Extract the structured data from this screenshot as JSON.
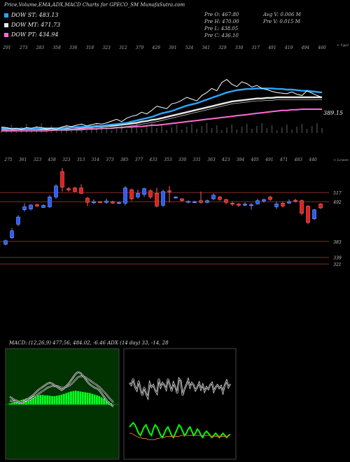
{
  "title": "Price,Volume,EMA,ADX,MACD Charts for GPECO_SM MunafaSutra.com",
  "legend": [
    {
      "label": "DOW ST: 483.13",
      "color": "#2aa7ff"
    },
    {
      "label": "DOW MT: 471.73",
      "color": "#e8e8e8"
    },
    {
      "label": "DOW PT: 434.94",
      "color": "#ff6ad5"
    }
  ],
  "ohlc": {
    "open": "Pre O: 467.80",
    "high": "Pre H: 470.00",
    "low": "Pre L: 438.05",
    "close": "Pre C: 436.10",
    "avgv": "Avg V: 0.006 M",
    "prev": "Pre V: 0.015 M"
  },
  "chart_data": [
    {
      "type": "line",
      "name": "volume-ema-panel",
      "top_labels": [
        "291",
        "273",
        "283",
        "358",
        "336",
        "318",
        "323",
        "312",
        "379",
        "429",
        "391",
        "524",
        "341",
        "329",
        "330",
        "317",
        "491",
        "419",
        "494",
        "460"
      ],
      "corner_label": "< Vgol",
      "price_label": "389.15",
      "series": [
        {
          "name": "price",
          "color": "#ffffff",
          "values": [
            405,
            404,
            402,
            403,
            401,
            404,
            403,
            405,
            404,
            402,
            403,
            401,
            405,
            407,
            406,
            408,
            410,
            407,
            409,
            411,
            410,
            412,
            415,
            418,
            414,
            420,
            423,
            425,
            430,
            427,
            433,
            440,
            438,
            436,
            444,
            446,
            450,
            455,
            452,
            449,
            458,
            463,
            470,
            466,
            480,
            485,
            477,
            473,
            481,
            478,
            472,
            475,
            470,
            468,
            465,
            463,
            462,
            461,
            464,
            460,
            458,
            466,
            462,
            458,
            455
          ]
        },
        {
          "name": "DOW ST",
          "color": "#2aa7ff",
          "values": [
            403,
            403,
            402,
            402,
            402,
            402,
            402,
            402,
            403,
            403,
            403,
            403,
            403,
            404,
            404,
            405,
            405,
            406,
            406,
            407,
            407,
            408,
            409,
            410,
            411,
            412,
            414,
            416,
            418,
            420,
            422,
            425,
            428,
            430,
            432,
            435,
            438,
            441,
            443,
            445,
            448,
            451,
            454,
            457,
            460,
            463,
            465,
            467,
            468,
            469,
            469,
            470,
            470,
            470,
            470,
            469,
            469,
            468,
            468,
            467,
            466,
            466,
            465,
            464,
            463
          ]
        },
        {
          "name": "DOW MT",
          "color": "#e8e8e8",
          "values": [
            402,
            402,
            402,
            402,
            402,
            402,
            402,
            402,
            402,
            402,
            403,
            403,
            403,
            403,
            404,
            404,
            404,
            405,
            405,
            406,
            406,
            407,
            407,
            408,
            409,
            410,
            411,
            412,
            414,
            415,
            417,
            418,
            420,
            422,
            424,
            426,
            428,
            430,
            432,
            434,
            436,
            438,
            440,
            442,
            444,
            446,
            448,
            449,
            450,
            451,
            452,
            453,
            453,
            454,
            454,
            455,
            455,
            455,
            455,
            455,
            455,
            455,
            455,
            455,
            455
          ]
        },
        {
          "name": "DOW PT",
          "color": "#ff6ad5",
          "values": [
            399,
            399,
            399,
            400,
            400,
            400,
            400,
            400,
            400,
            400,
            400,
            401,
            401,
            401,
            401,
            401,
            402,
            402,
            402,
            402,
            403,
            403,
            403,
            404,
            404,
            405,
            405,
            406,
            406,
            407,
            408,
            408,
            409,
            410,
            411,
            412,
            413,
            414,
            415,
            416,
            417,
            418,
            419,
            420,
            421,
            422,
            423,
            424,
            425,
            426,
            427,
            428,
            429,
            430,
            431,
            432,
            433,
            433,
            434,
            434,
            435,
            435,
            435,
            435,
            435
          ]
        }
      ],
      "ylim": [
        395,
        495
      ]
    },
    {
      "type": "candlestick",
      "name": "price-panel",
      "top_labels": [
        "275",
        "361",
        "323",
        "458",
        "323",
        "313",
        "314",
        "373",
        "385",
        "377",
        "433",
        "353",
        "330",
        "331",
        "363",
        "423",
        "394",
        "405",
        "491",
        "471",
        "483",
        "440"
      ],
      "corner_label": "< Lowes",
      "levels": [
        {
          "value": 517,
          "label": "517"
        },
        {
          "value": 492,
          "label": "492"
        },
        {
          "value": 383,
          "label": "383"
        },
        {
          "value": 339,
          "label": "339"
        },
        {
          "value": 321,
          "label": "321"
        }
      ],
      "ylim": [
        300,
        600
      ],
      "candles": [
        {
          "o": 375,
          "c": 385,
          "h": 388,
          "l": 372,
          "d": "up"
        },
        {
          "o": 393,
          "c": 412,
          "h": 420,
          "l": 390,
          "d": "up"
        },
        {
          "o": 430,
          "c": 450,
          "h": 455,
          "l": 425,
          "d": "up"
        },
        {
          "o": 470,
          "c": 478,
          "h": 488,
          "l": 465,
          "d": "up"
        },
        {
          "o": 472,
          "c": 483,
          "h": 485,
          "l": 468,
          "d": "up"
        },
        {
          "o": 480,
          "c": 484,
          "h": 487,
          "l": 478,
          "d": "down"
        },
        {
          "o": 476,
          "c": 482,
          "h": 485,
          "l": 475,
          "d": "up"
        },
        {
          "o": 478,
          "c": 505,
          "h": 510,
          "l": 475,
          "d": "up"
        },
        {
          "o": 505,
          "c": 535,
          "h": 540,
          "l": 500,
          "d": "up"
        },
        {
          "o": 575,
          "c": 532,
          "h": 585,
          "l": 520,
          "d": "down"
        },
        {
          "o": 528,
          "c": 524,
          "h": 532,
          "l": 520,
          "d": "down"
        },
        {
          "o": 520,
          "c": 530,
          "h": 533,
          "l": 518,
          "d": "down"
        },
        {
          "o": 530,
          "c": 515,
          "h": 540,
          "l": 513,
          "d": "down"
        },
        {
          "o": 502,
          "c": 490,
          "h": 505,
          "l": 480,
          "d": "down"
        },
        {
          "o": 490,
          "c": 492,
          "h": 498,
          "l": 485,
          "d": "up"
        },
        {
          "o": 492,
          "c": 490,
          "h": 494,
          "l": 489,
          "d": "down"
        },
        {
          "o": 494,
          "c": 490,
          "h": 500,
          "l": 486,
          "d": "up"
        },
        {
          "o": 492,
          "c": 488,
          "h": 495,
          "l": 486,
          "d": "down"
        },
        {
          "o": 490,
          "c": 488,
          "h": 492,
          "l": 485,
          "d": "up"
        },
        {
          "o": 488,
          "c": 530,
          "h": 535,
          "l": 482,
          "d": "up"
        },
        {
          "o": 525,
          "c": 500,
          "h": 528,
          "l": 495,
          "d": "down"
        },
        {
          "o": 505,
          "c": 515,
          "h": 525,
          "l": 500,
          "d": "up"
        },
        {
          "o": 512,
          "c": 528,
          "h": 530,
          "l": 505,
          "d": "up"
        },
        {
          "o": 522,
          "c": 505,
          "h": 526,
          "l": 500,
          "d": "down"
        },
        {
          "o": 515,
          "c": 480,
          "h": 530,
          "l": 476,
          "d": "down"
        },
        {
          "o": 482,
          "c": 520,
          "h": 525,
          "l": 478,
          "d": "up"
        },
        {
          "o": 522,
          "c": 519,
          "h": 535,
          "l": 490,
          "d": "down"
        },
        {
          "o": 505,
          "c": 503,
          "h": 507,
          "l": 500,
          "d": "up"
        },
        {
          "o": 500,
          "c": 495,
          "h": 502,
          "l": 492,
          "d": "down"
        },
        {
          "o": 493,
          "c": 491,
          "h": 496,
          "l": 488,
          "d": "up"
        },
        {
          "o": 492,
          "c": 492,
          "h": 495,
          "l": 490,
          "d": "up"
        },
        {
          "o": 495,
          "c": 490,
          "h": 520,
          "l": 487,
          "d": "down"
        },
        {
          "o": 490,
          "c": 495,
          "h": 498,
          "l": 488,
          "d": "up"
        },
        {
          "o": 500,
          "c": 510,
          "h": 515,
          "l": 496,
          "d": "up"
        },
        {
          "o": 505,
          "c": 498,
          "h": 508,
          "l": 495,
          "d": "down"
        },
        {
          "o": 498,
          "c": 490,
          "h": 500,
          "l": 485,
          "d": "down"
        },
        {
          "o": 488,
          "c": 486,
          "h": 492,
          "l": 480,
          "d": "down"
        },
        {
          "o": 486,
          "c": 482,
          "h": 488,
          "l": 478,
          "d": "down"
        },
        {
          "o": 486,
          "c": 482,
          "h": 490,
          "l": 480,
          "d": "up"
        },
        {
          "o": 484,
          "c": 484,
          "h": 488,
          "l": 470,
          "d": "up"
        },
        {
          "o": 486,
          "c": 495,
          "h": 500,
          "l": 484,
          "d": "up"
        },
        {
          "o": 494,
          "c": 498,
          "h": 500,
          "l": 490,
          "d": "up"
        },
        {
          "o": 505,
          "c": 498,
          "h": 508,
          "l": 495,
          "d": "down"
        },
        {
          "o": 486,
          "c": 478,
          "h": 492,
          "l": 472,
          "d": "up"
        },
        {
          "o": 488,
          "c": 480,
          "h": 492,
          "l": 476,
          "d": "down"
        },
        {
          "o": 492,
          "c": 488,
          "h": 498,
          "l": 486,
          "d": "up"
        },
        {
          "o": 496,
          "c": 494,
          "h": 500,
          "l": 490,
          "d": "down"
        },
        {
          "o": 495,
          "c": 460,
          "h": 498,
          "l": 455,
          "d": "down"
        },
        {
          "o": 480,
          "c": 435,
          "h": 482,
          "l": 430,
          "d": "down"
        },
        {
          "o": 445,
          "c": 470,
          "h": 472,
          "l": 442,
          "d": "up"
        },
        {
          "o": 475,
          "c": 486,
          "h": 488,
          "l": 472,
          "d": "down"
        }
      ]
    },
    {
      "type": "area",
      "name": "macd-panel",
      "label": "MACD: (12,26,9) 477.56, 484.02, -6.46 ADX (14 day) 33, -14, 28",
      "histogram": [
        3,
        5,
        7,
        9,
        10,
        12,
        14,
        16,
        18,
        20,
        22,
        23,
        24,
        25,
        25,
        24,
        24,
        23,
        22,
        22,
        23,
        24,
        26,
        28,
        30,
        32,
        34,
        35,
        36,
        35,
        34,
        33,
        32,
        31,
        30,
        28,
        26,
        24,
        22,
        19,
        16,
        12,
        8,
        4,
        1
      ],
      "macd_line": [
        50,
        48,
        46,
        45,
        43,
        42,
        44,
        46,
        48,
        50,
        52,
        55,
        58,
        60,
        62,
        64,
        66,
        67,
        66,
        64,
        62,
        60,
        58,
        60,
        63,
        66,
        70,
        74,
        78,
        80,
        79,
        76,
        72,
        68,
        65,
        63,
        61,
        60,
        58,
        54,
        50,
        46,
        42,
        40,
        38
      ],
      "signal_line": [
        45,
        45,
        44,
        44,
        44,
        44,
        44,
        45,
        46,
        47,
        49,
        51,
        53,
        55,
        57,
        59,
        61,
        62,
        63,
        63,
        63,
        62,
        61,
        61,
        62,
        63,
        65,
        68,
        71,
        74,
        75,
        75,
        74,
        72,
        70,
        68,
        66,
        64,
        62,
        59,
        56,
        53,
        49,
        46,
        43
      ]
    },
    {
      "type": "line",
      "name": "adx-panel",
      "series": [
        {
          "name": "+DI",
          "color": "#ffffff",
          "values": [
            62,
            60,
            66,
            58,
            55,
            64,
            56,
            50,
            58,
            52,
            48,
            62,
            58,
            60,
            55,
            52,
            66,
            58,
            62,
            60,
            56,
            66,
            60,
            54,
            62,
            58,
            52,
            66,
            64,
            50,
            56,
            60,
            65,
            58,
            62,
            60,
            55,
            58,
            62,
            56,
            60,
            54,
            58,
            56,
            60,
            62,
            54,
            58,
            60,
            57,
            59,
            53,
            60,
            64,
            58,
            61
          ]
        },
        {
          "name": "-DI",
          "color": "#00ff00",
          "values": [
            20,
            22,
            24,
            22,
            18,
            14,
            12,
            16,
            20,
            22,
            18,
            14,
            12,
            18,
            22,
            20,
            16,
            12,
            10,
            14,
            18,
            20,
            16,
            12,
            10,
            14,
            18,
            22,
            20,
            16,
            12,
            14,
            18,
            20,
            16,
            12,
            14,
            18,
            16,
            12,
            10,
            14,
            16,
            14,
            12,
            10,
            12,
            14,
            12,
            10,
            12,
            14,
            12,
            10,
            12,
            13
          ]
        },
        {
          "name": "ADX",
          "color": "#d9772b",
          "values": [
            14,
            14,
            13,
            12,
            11,
            10,
            10,
            9,
            9,
            9,
            8,
            8,
            8,
            8,
            8,
            9,
            9,
            10,
            10,
            10,
            11,
            11,
            11,
            11,
            11,
            11,
            11,
            11,
            12,
            12,
            12,
            12,
            12,
            12,
            12,
            12,
            12,
            12,
            12,
            12,
            12,
            12,
            12,
            12,
            12,
            11,
            11,
            11,
            11,
            11,
            11,
            11,
            11,
            11,
            12,
            13
          ]
        }
      ]
    }
  ]
}
